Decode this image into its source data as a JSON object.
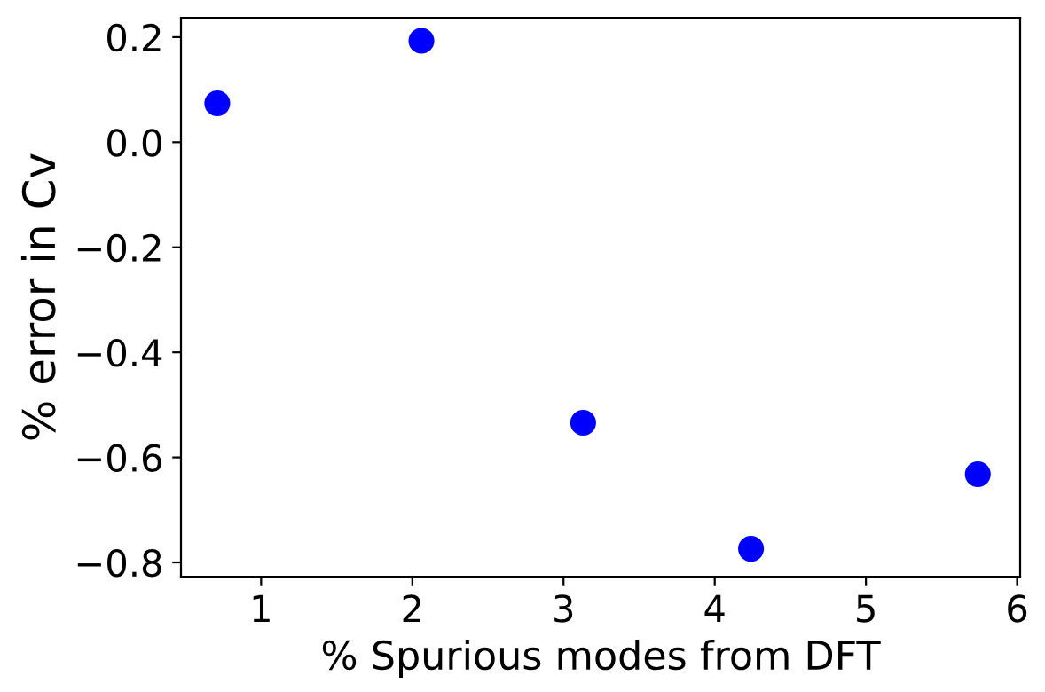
{
  "chart_data": {
    "type": "scatter",
    "xlabel": "% Spurious modes from DFT",
    "ylabel": "% error in Cv",
    "x": [
      0.71,
      2.06,
      3.13,
      4.24,
      5.74
    ],
    "values": [
      0.074,
      0.193,
      -0.534,
      -0.774,
      -0.632
    ],
    "color": "#0000ff",
    "marker": "circle",
    "xlim": [
      0.47,
      6.02
    ],
    "xticks": [
      1,
      2,
      3,
      4,
      5,
      6
    ],
    "ylim": [
      -0.827,
      0.237
    ],
    "yticks": [
      {
        "value": 0.2,
        "label": "0.2"
      },
      {
        "value": 0.0,
        "label": "0.0"
      },
      {
        "value": -0.2,
        "label": "−0.2"
      },
      {
        "value": -0.4,
        "label": "−0.4"
      },
      {
        "value": -0.6,
        "label": "−0.6"
      },
      {
        "value": -0.8,
        "label": "−0.8"
      }
    ],
    "grid": false
  }
}
